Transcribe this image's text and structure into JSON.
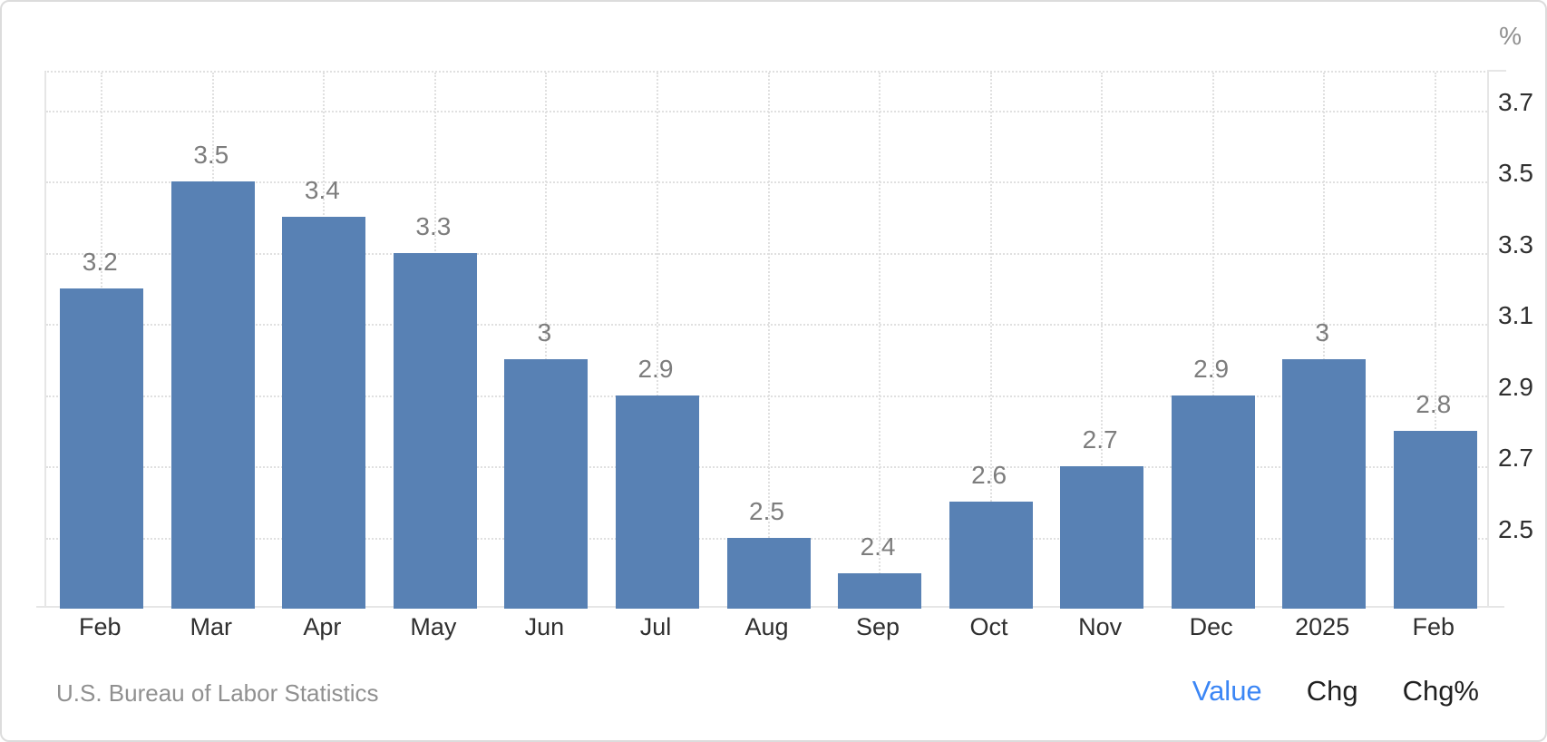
{
  "page": {
    "unit_label": "%",
    "source_text": "U.S. Bureau of Labor Statistics",
    "footer_links": [
      {
        "label": "Value",
        "active": true
      },
      {
        "label": "Chg",
        "active": false
      },
      {
        "label": "Chg%",
        "active": false
      }
    ]
  },
  "colors": {
    "bar": "#5881b4",
    "value_label": "#7d7d7d",
    "axis_line": "#e6e6e6",
    "gridline": "#e0e0e0",
    "tick_text": "#2f2f2f",
    "xlabel_text": "#2f2f2f",
    "unit_text": "#8f8f8f",
    "source_text": "#909090",
    "link_active": "#3b86f5",
    "link_inactive": "#1f1f1f"
  },
  "chart_data": {
    "type": "bar",
    "title": "",
    "categories": [
      "Feb",
      "Mar",
      "Apr",
      "May",
      "Jun",
      "Jul",
      "Aug",
      "Sep",
      "Oct",
      "Nov",
      "Dec",
      "2025",
      "Feb"
    ],
    "values": [
      3.2,
      3.5,
      3.4,
      3.3,
      3.0,
      2.9,
      2.5,
      2.4,
      2.6,
      2.7,
      2.9,
      3.0,
      2.8
    ],
    "value_labels": [
      "3.2",
      "3.5",
      "3.4",
      "3.3",
      "3",
      "2.9",
      "2.5",
      "2.4",
      "2.6",
      "2.7",
      "2.9",
      "3",
      "2.8"
    ],
    "unit": "%",
    "y_ticks": [
      3.7,
      3.5,
      3.3,
      3.1,
      2.9,
      2.7,
      2.5
    ],
    "ylim": [
      2.3,
      3.81
    ],
    "grid": true,
    "legend": "none"
  }
}
